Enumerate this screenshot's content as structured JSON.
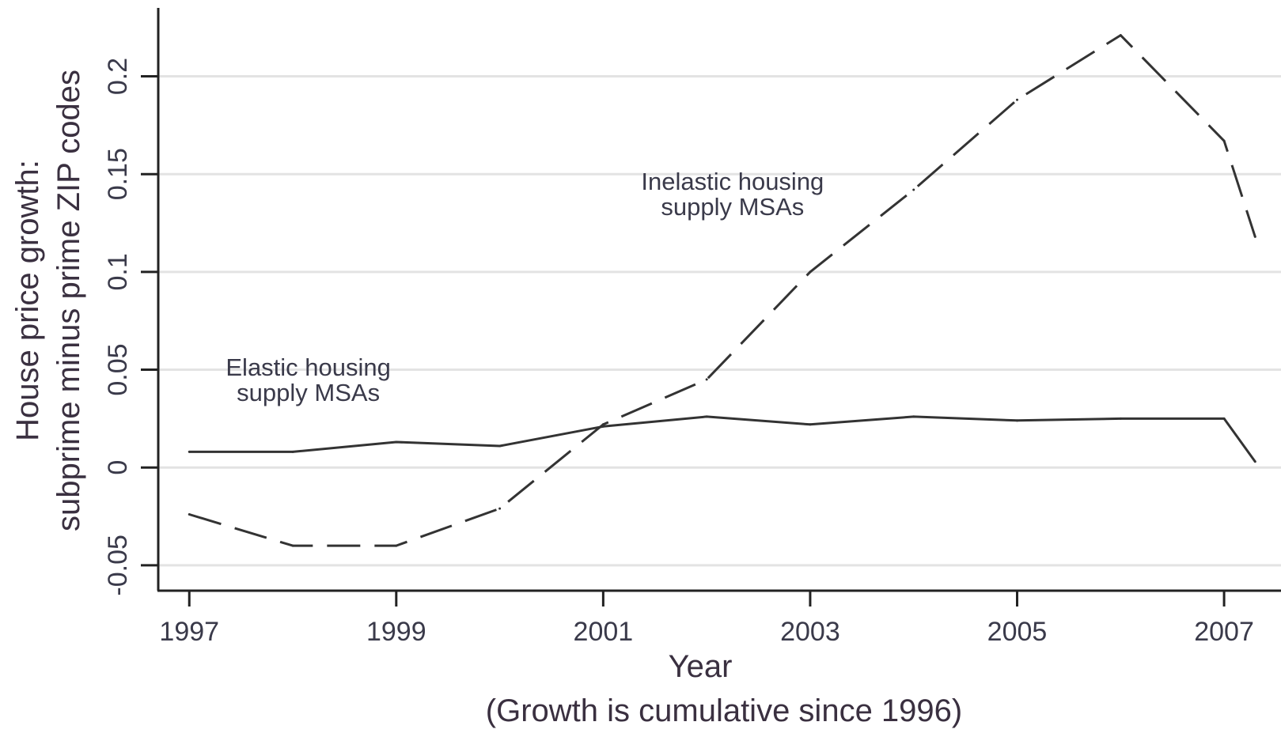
{
  "chart_data": {
    "type": "line",
    "title": "",
    "ylabel": [
      "House price growth:",
      "subprime minus prime ZIP codes"
    ],
    "xlabel": "Year",
    "xlabel_note": "(Growth is cumulative since 1996)",
    "x": [
      1997,
      1998,
      1999,
      2000,
      2001,
      2002,
      2003,
      2004,
      2005,
      2006,
      2007,
      2007.3
    ],
    "xticks": [
      1997,
      1999,
      2001,
      2003,
      2005,
      2007
    ],
    "xtick_labels": [
      "1997",
      "1999",
      "2001",
      "2003",
      "2005",
      "2007"
    ],
    "xlim": [
      1996.7,
      2007.55
    ],
    "yticks": [
      -0.05,
      0,
      0.05,
      0.1,
      0.15,
      0.2
    ],
    "ytick_labels": [
      "-0.05",
      "0",
      "0.05",
      "0.1",
      "0.15",
      "0.2"
    ],
    "ylim": [
      -0.063,
      0.235
    ],
    "grid": "horizontal",
    "series": [
      {
        "label": [
          "Elastic housing",
          "supply MSAs"
        ],
        "style": "solid",
        "color": "#333333",
        "values": [
          0.008,
          0.008,
          0.013,
          0.011,
          0.021,
          0.026,
          0.022,
          0.026,
          0.024,
          0.025,
          0.025,
          0.003
        ],
        "label_at": [
          1998.15,
          0.047
        ]
      },
      {
        "label": [
          "Inelastic housing",
          "supply MSAs"
        ],
        "style": "dashed",
        "color": "#333333",
        "values": [
          -0.024,
          -0.04,
          -0.04,
          -0.021,
          0.022,
          0.045,
          0.1,
          0.142,
          0.188,
          0.221,
          0.167,
          0.118
        ],
        "label_at": [
          2002.25,
          0.142
        ]
      }
    ]
  }
}
